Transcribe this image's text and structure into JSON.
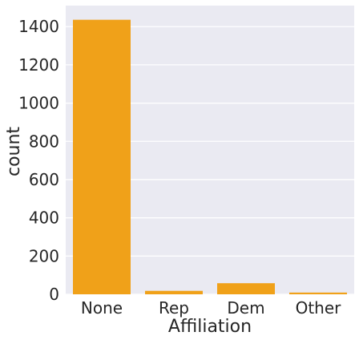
{
  "chart_data": {
    "type": "bar",
    "categories": [
      "None",
      "Rep",
      "Dem",
      "Other"
    ],
    "values": [
      1436,
      18,
      58,
      9
    ],
    "xlabel": "Affiliation",
    "ylabel": "count",
    "ylim": [
      0,
      1510
    ],
    "yticks": [
      0,
      200,
      400,
      600,
      800,
      1000,
      1200,
      1400
    ],
    "ytick_labels": [
      "0",
      "200",
      "400",
      "600",
      "800",
      "1000",
      "1200",
      "1400"
    ],
    "grid": true,
    "colors": {
      "bar": "#f0a119",
      "plot_background": "#eaeaf2",
      "grid": "#ffffff",
      "text": "#262626"
    }
  }
}
